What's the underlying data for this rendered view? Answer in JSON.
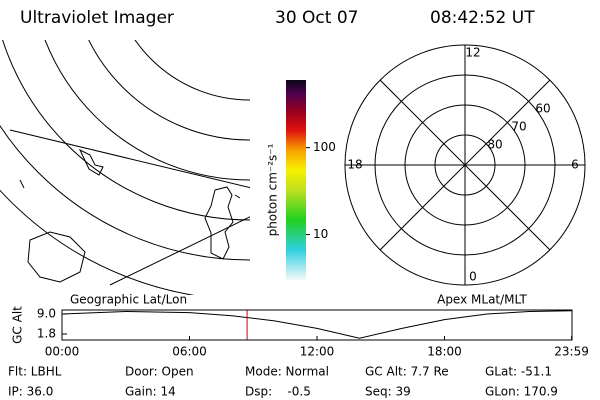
{
  "header": {
    "instrument": "Ultraviolet Imager",
    "date": "30 Oct 07",
    "time": "08:42:52 UT"
  },
  "geo_map": {
    "label": "Geographic Lat/Lon"
  },
  "colorbar": {
    "label": "photon cm⁻²s⁻¹",
    "log": true,
    "lim": [
      3,
      600
    ],
    "ticks": [
      10,
      100
    ]
  },
  "polar": {
    "label": "Apex MLat/MLT",
    "lat_lim": [
      90,
      50
    ],
    "lat_rings": [
      80,
      70,
      60
    ],
    "mlt_labels": [
      12,
      6,
      18,
      0
    ]
  },
  "altitude_plot": {
    "ylabel": "GC Alt",
    "ylim": [
      -0.36,
      10.44
    ],
    "yticks": [
      {
        "value": 9.0,
        "label": "9.0"
      },
      {
        "value": 1.8,
        "label": "1.8"
      }
    ],
    "xlim": [
      0,
      24
    ],
    "xticks": [
      {
        "value": 0,
        "label": "00:00"
      },
      {
        "value": 6,
        "label": "06:00"
      },
      {
        "value": 12,
        "label": "12:00"
      },
      {
        "value": 18,
        "label": "18:00"
      },
      {
        "value": 23.98,
        "label": "23:59"
      }
    ],
    "x": [
      0,
      3,
      6,
      8,
      10,
      12,
      14,
      16,
      18,
      20,
      22,
      23.98
    ],
    "values": [
      9.0,
      9.9,
      9.5,
      8.4,
      6.5,
      3.8,
      0.3,
      3.8,
      7.0,
      9.0,
      9.9,
      10.2
    ],
    "marker_x": 8.71,
    "marker_color": "#d00000"
  },
  "info": {
    "rows": [
      [
        "Flt: LBHL",
        "Door: Open",
        "Mode: Normal",
        "GC Alt: 7.7 Re",
        "GLat: -51.1"
      ],
      [
        "IP: 36.0",
        "Gain: 14",
        "Dsp:    -0.5",
        "Seq: 39",
        "GLon: 170.9"
      ]
    ]
  }
}
